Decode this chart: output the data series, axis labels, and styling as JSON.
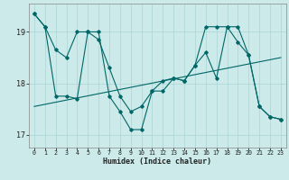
{
  "xlabel": "Humidex (Indice chaleur)",
  "bg_color": "#cceaea",
  "grid_color": "#aad4d4",
  "line_color": "#006666",
  "xlim": [
    -0.5,
    23.5
  ],
  "ylim": [
    16.75,
    19.55
  ],
  "yticks": [
    17,
    18,
    19
  ],
  "xticks": [
    0,
    1,
    2,
    3,
    4,
    5,
    6,
    7,
    8,
    9,
    10,
    11,
    12,
    13,
    14,
    15,
    16,
    17,
    18,
    19,
    20,
    21,
    22,
    23
  ],
  "series1_x": [
    0,
    1,
    2,
    3,
    4,
    5,
    6,
    7,
    8,
    9,
    10,
    11,
    12,
    13,
    14,
    15,
    16,
    17,
    18,
    19,
    20,
    21,
    22,
    23
  ],
  "series1_y": [
    19.35,
    19.1,
    18.65,
    18.5,
    19.0,
    19.0,
    18.85,
    18.3,
    17.75,
    17.45,
    17.55,
    17.85,
    18.05,
    18.1,
    18.05,
    18.35,
    18.6,
    18.1,
    19.1,
    19.1,
    18.55,
    17.55,
    17.35,
    17.3
  ],
  "series2_x": [
    0,
    1,
    2,
    3,
    4,
    5,
    6,
    7,
    8,
    9,
    10,
    11,
    12,
    13,
    14,
    15,
    16,
    17,
    18,
    19,
    20,
    21,
    22,
    23
  ],
  "series2_y": [
    19.35,
    19.1,
    17.75,
    17.75,
    17.7,
    19.0,
    19.0,
    17.75,
    17.45,
    17.1,
    17.1,
    17.85,
    17.85,
    18.1,
    18.05,
    18.35,
    19.1,
    19.1,
    19.1,
    18.8,
    18.55,
    17.55,
    17.35,
    17.3
  ],
  "series3_x": [
    0,
    23
  ],
  "series3_y": [
    17.55,
    18.5
  ]
}
